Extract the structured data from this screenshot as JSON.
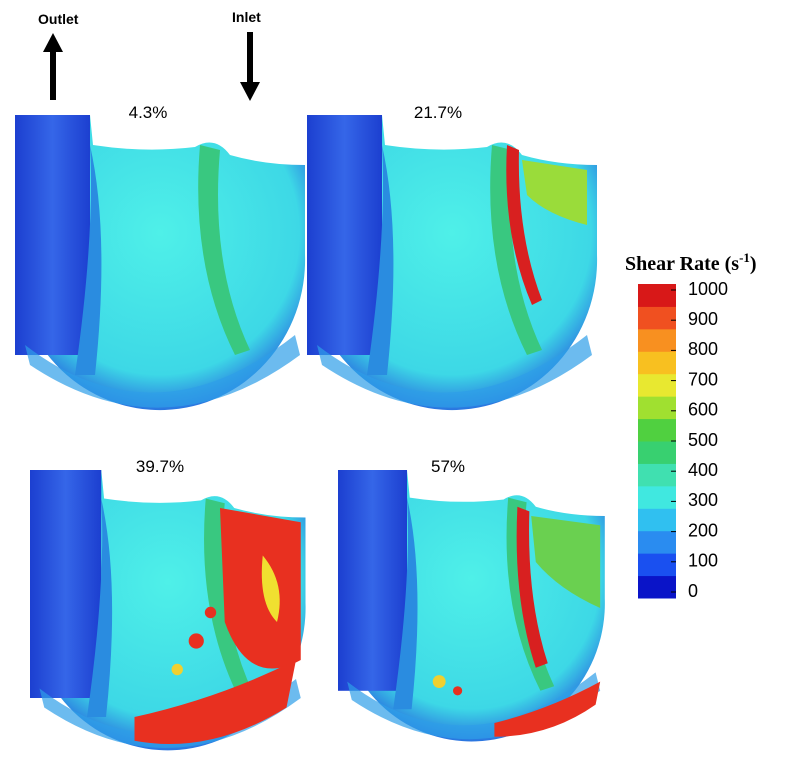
{
  "labels": {
    "outlet": "Outlet",
    "inlet": "Inlet"
  },
  "panels": [
    {
      "title": "4.3%"
    },
    {
      "title": "21.7%"
    },
    {
      "title": "39.7%"
    },
    {
      "title": "57%"
    }
  ],
  "colorbar": {
    "title": "Shear Rate (s",
    "title_sup": "-1",
    "title_end": ")",
    "range": [
      0,
      1000
    ],
    "ticks": [
      1000,
      900,
      800,
      700,
      600,
      500,
      400,
      300,
      200,
      100,
      0
    ]
  }
}
